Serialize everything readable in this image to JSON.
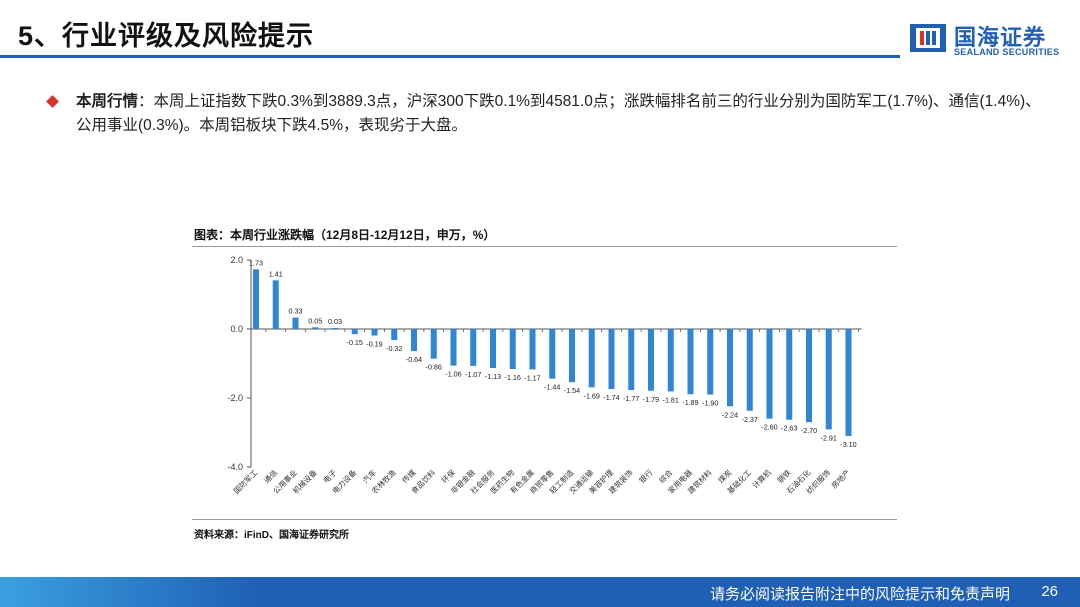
{
  "header": {
    "title": "5、行业评级及风险提示"
  },
  "logo": {
    "cn": "国海证券",
    "en": "SEALAND SECURITIES"
  },
  "bullet": {
    "label": "本周行情",
    "text": "：本周上证指数下跌0.3%到3889.3点，沪深300下跌0.1%到4581.0点；涨跌幅排名前三的行业分别为国防军工(1.7%)、通信(1.4%)、公用事业(0.3%)。本周铝板块下跌4.5%，表现劣于大盘。"
  },
  "chart_title": "图表：本周行业涨跌幅（12月8日-12月12日，申万，%）",
  "source": "资料来源：iFinD、国海证券研究所",
  "footer": {
    "disclaimer": "请务必阅读报告附注中的风险提示和免责声明",
    "page": "26"
  },
  "colors": {
    "bar": "#2e86d4",
    "brand": "#1f5fb4",
    "bullet": "#d9342b"
  },
  "chart_data": {
    "type": "bar",
    "categories": [
      "国防军工",
      "通信",
      "公用事业",
      "机械设备",
      "电子",
      "电力设备",
      "汽车",
      "农林牧渔",
      "传媒",
      "食品饮料",
      "环保",
      "非银金融",
      "社会服务",
      "医药生物",
      "有色金属",
      "商贸零售",
      "轻工制造",
      "交通运输",
      "美容护理",
      "建筑装饰",
      "银行",
      "综合",
      "家用电器",
      "建筑材料",
      "煤炭",
      "基础化工",
      "计算机",
      "钢铁",
      "石油石化",
      "纺织服饰",
      "房地产"
    ],
    "values": [
      1.73,
      1.41,
      0.33,
      0.05,
      0.03,
      -0.15,
      -0.19,
      -0.32,
      -0.64,
      -0.86,
      -1.06,
      -1.07,
      -1.13,
      -1.16,
      -1.17,
      -1.44,
      -1.54,
      -1.69,
      -1.74,
      -1.77,
      -1.79,
      -1.81,
      -1.89,
      -1.9,
      -2.24,
      -2.37,
      -2.6,
      -2.63,
      -2.7,
      -2.91,
      -3.1
    ],
    "value_labels": [
      "1.73",
      "1.41",
      "0.33",
      "0.05",
      "0.03",
      "-0.15",
      "-0.19",
      "-0.32",
      "-0.64",
      "-0.86",
      "-1.06",
      "-1.07",
      "-1.13",
      "-1.16",
      "-1.17",
      "-1.44",
      "-1.54",
      "-1.69",
      "-1.74",
      "-1.77",
      "-1.79",
      "-1.81",
      "-1.89",
      "-1.90",
      "-2.24",
      "-2.37",
      "-2.60",
      "-2.63",
      "-2.70",
      "-2.91",
      "-3.10"
    ],
    "y_ticks": [
      2.0,
      0.0,
      -2.0,
      -4.0
    ],
    "y_tick_labels": [
      "2.0",
      "0.0",
      "-2.0",
      "-4.0"
    ],
    "ylim": [
      -4.0,
      2.0
    ],
    "grid": false
  }
}
